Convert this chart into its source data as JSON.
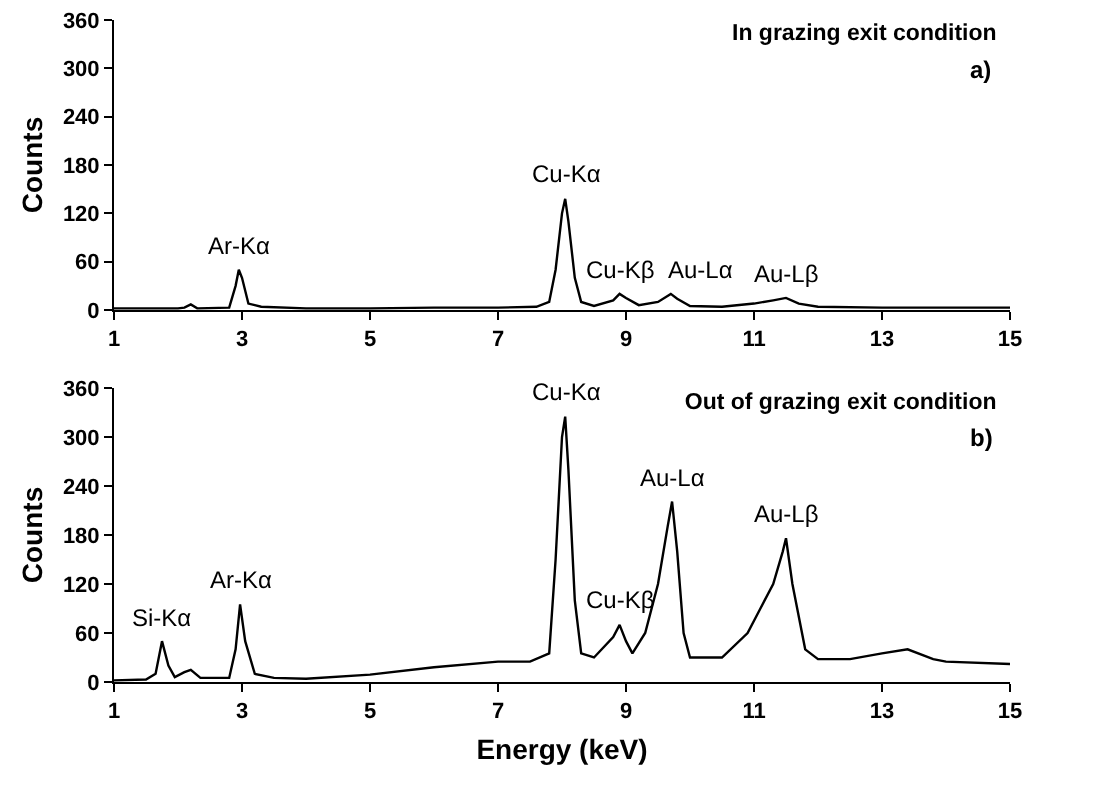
{
  "chart_data": [
    {
      "type": "line",
      "title": "In grazing exit condition",
      "ylabel": "Counts",
      "xlim": [
        1,
        15
      ],
      "xticks": [
        1,
        3,
        5,
        7,
        9,
        11,
        13,
        15
      ],
      "ylim": [
        0,
        360
      ],
      "yticks": [
        0,
        60,
        120,
        180,
        240,
        300,
        360
      ],
      "grid": false,
      "series": [
        {
          "color": "#000000",
          "x": [
            1,
            2,
            2.1,
            2.2,
            2.3,
            2.8,
            2.9,
            2.95,
            3.0,
            3.1,
            3.2,
            3.3,
            4,
            5,
            6,
            7,
            7.6,
            7.8,
            7.9,
            8.0,
            8.05,
            8.1,
            8.2,
            8.3,
            8.5,
            8.8,
            8.9,
            9.0,
            9.2,
            9.5,
            9.7,
            9.8,
            10,
            10.5,
            11,
            11.3,
            11.5,
            11.7,
            12,
            13,
            14,
            15
          ],
          "values": [
            2,
            2,
            3,
            7,
            2,
            3,
            30,
            50,
            40,
            8,
            6,
            4,
            2,
            2,
            3,
            3,
            4,
            10,
            50,
            120,
            138,
            110,
            40,
            10,
            5,
            12,
            20,
            15,
            6,
            10,
            20,
            14,
            5,
            4,
            8,
            12,
            15,
            8,
            4,
            3,
            3,
            3
          ]
        }
      ],
      "annotations": [
        "a)",
        {
          "text": "Ar-Kα",
          "x": 2.95,
          "y": 50
        },
        {
          "text": "Cu-Kα",
          "x": 8.05,
          "y": 138
        },
        {
          "text": "Cu-Kβ",
          "x": 8.9,
          "y": 20
        },
        {
          "text": "Au-Lα",
          "x": 9.7,
          "y": 20
        },
        {
          "text": "Au-Lβ",
          "x": 11.5,
          "y": 15
        }
      ]
    },
    {
      "type": "line",
      "title": "Out of grazing exit condition",
      "xlabel": "Energy (keV)",
      "ylabel": "Counts",
      "xlim": [
        1,
        15
      ],
      "xticks": [
        1,
        3,
        5,
        7,
        9,
        11,
        13,
        15
      ],
      "ylim": [
        0,
        360
      ],
      "yticks": [
        0,
        60,
        120,
        180,
        240,
        300,
        360
      ],
      "grid": false,
      "series": [
        {
          "color": "#000000",
          "x": [
            1,
            1.5,
            1.65,
            1.75,
            1.85,
            1.95,
            2.1,
            2.2,
            2.35,
            2.8,
            2.9,
            2.97,
            3.05,
            3.2,
            3.5,
            4,
            5,
            6,
            7,
            7.5,
            7.8,
            7.9,
            8.0,
            8.05,
            8.1,
            8.2,
            8.3,
            8.5,
            8.8,
            8.9,
            9.0,
            9.1,
            9.3,
            9.5,
            9.65,
            9.72,
            9.8,
            9.9,
            10,
            10.5,
            10.9,
            11.1,
            11.3,
            11.45,
            11.5,
            11.6,
            11.8,
            12,
            12.5,
            13,
            13.4,
            13.8,
            14,
            15
          ],
          "values": [
            2,
            3,
            10,
            50,
            20,
            6,
            12,
            15,
            5,
            5,
            40,
            95,
            50,
            10,
            5,
            4,
            9,
            18,
            25,
            25,
            35,
            150,
            300,
            325,
            260,
            100,
            35,
            30,
            55,
            70,
            50,
            35,
            60,
            120,
            190,
            221,
            160,
            60,
            30,
            30,
            60,
            90,
            120,
            160,
            176,
            120,
            40,
            28,
            28,
            35,
            40,
            28,
            25,
            22
          ]
        }
      ],
      "annotations": [
        "b)",
        {
          "text": "Si-Kα",
          "x": 1.75,
          "y": 50
        },
        {
          "text": "Ar-Kα",
          "x": 2.97,
          "y": 95
        },
        {
          "text": "Cu-Kα",
          "x": 8.05,
          "y": 325
        },
        {
          "text": "Cu-Kβ",
          "x": 8.9,
          "y": 70
        },
        {
          "text": "Au-Lα",
          "x": 9.72,
          "y": 221
        },
        {
          "text": "Au-Lβ",
          "x": 11.5,
          "y": 176
        }
      ]
    }
  ]
}
